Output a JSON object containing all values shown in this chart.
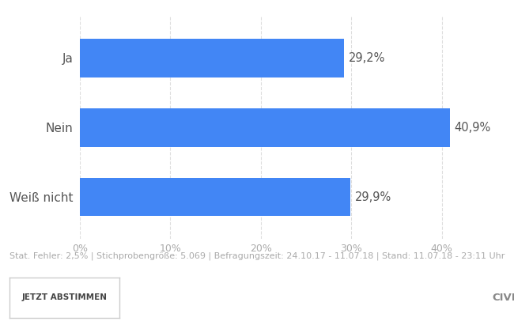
{
  "categories": [
    "Ja",
    "Nein",
    "Weiß nicht"
  ],
  "values": [
    29.2,
    40.9,
    29.9
  ],
  "labels": [
    "29,2%",
    "40,9%",
    "29,9%"
  ],
  "bar_color": "#4286f5",
  "background_color": "#ffffff",
  "plot_bg_color": "#ffffff",
  "grid_color": "#dddddd",
  "xlim": [
    0,
    44
  ],
  "xticks": [
    0,
    10,
    20,
    30,
    40
  ],
  "xtick_labels": [
    "0%",
    "10%",
    "20%",
    "30%",
    "40%"
  ],
  "ylabel_fontsize": 11,
  "value_label_fontsize": 10.5,
  "footer_text": "Stat. Fehler: 2,5% | Stichprobengröße: 5.069 | Befragungszeit: 24.10.17 - 11.07.18 | Stand: 11.07.18 - 23:11 Uhr",
  "footer_color": "#aaaaaa",
  "footer_fontsize": 8,
  "button_text": "JETZT ABSTIMMEN",
  "civey_text": "CIVEY",
  "bar_height": 0.55,
  "label_color": "#555555",
  "tick_color": "#aaaaaa",
  "footer_sep_color": "#e0e0e0",
  "bottom_bg_color": "#f2f2f2"
}
